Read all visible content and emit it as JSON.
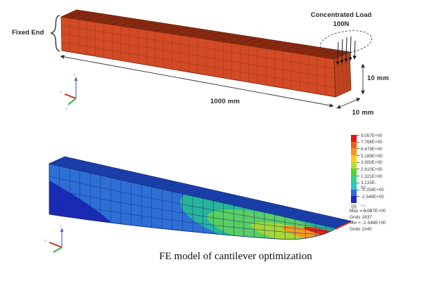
{
  "figure": {
    "top": {
      "fixed_end_label": "Fixed End",
      "load_label": "Concentrated Load",
      "load_value": "100N",
      "length_label": "1000 mm",
      "height_label": "10 mm",
      "width_label": "10 mm",
      "triad": {
        "x": "x",
        "y": "y",
        "z": "z"
      }
    },
    "bottom": {
      "triad": {
        "x": "x",
        "y": "y",
        "z": "z"
      },
      "legend": {
        "entries": [
          {
            "label": "9.057E+00",
            "color": "#e3170d"
          },
          {
            "label": "7.768E+00",
            "color": "#f35e1a"
          },
          {
            "label": "6.479E+00",
            "color": "#fa9418"
          },
          {
            "label": "5.189E+00",
            "color": "#fccf15"
          },
          {
            "label": "3.900E+00",
            "color": "#b8e02a"
          },
          {
            "label": "2.610E+00",
            "color": "#55d234"
          },
          {
            "label": "1.321E+00",
            "color": "#2ed488"
          },
          {
            "label": "3.133E-02",
            "color": "#29c8c8"
          },
          {
            "label": "-1.258E+00",
            "color": "#2a6ae0"
          },
          {
            "label": "-2.548E+00",
            "color": "#1b2bbf"
          }
        ],
        "no_result_label": "No result",
        "stats": [
          "Max = 9.057E+00",
          "Grids 1837",
          "Min = -2.548E+00",
          "Grids 2340"
        ]
      }
    },
    "caption": "FE model of cantilever optimization"
  },
  "colors": {
    "top_beam": {
      "front": "#d24b26",
      "top": "#8e2c12",
      "end": "#bf4420",
      "grid_front": "#a33417",
      "grid_top": "#5c1d0a",
      "outline": "#6e2008"
    },
    "bottom_beam": {
      "top": "#1c40b0",
      "front_base": "#2e6fd6",
      "min_region": "#1a2ab5",
      "teal": "#27b49b",
      "green": "#5ace62",
      "yellow_green": "#a6d830",
      "orange": "#f2991f",
      "red": "#e22512",
      "grid": "#12337e",
      "outline": "#0e2a6e"
    },
    "annotation": "#333333"
  }
}
